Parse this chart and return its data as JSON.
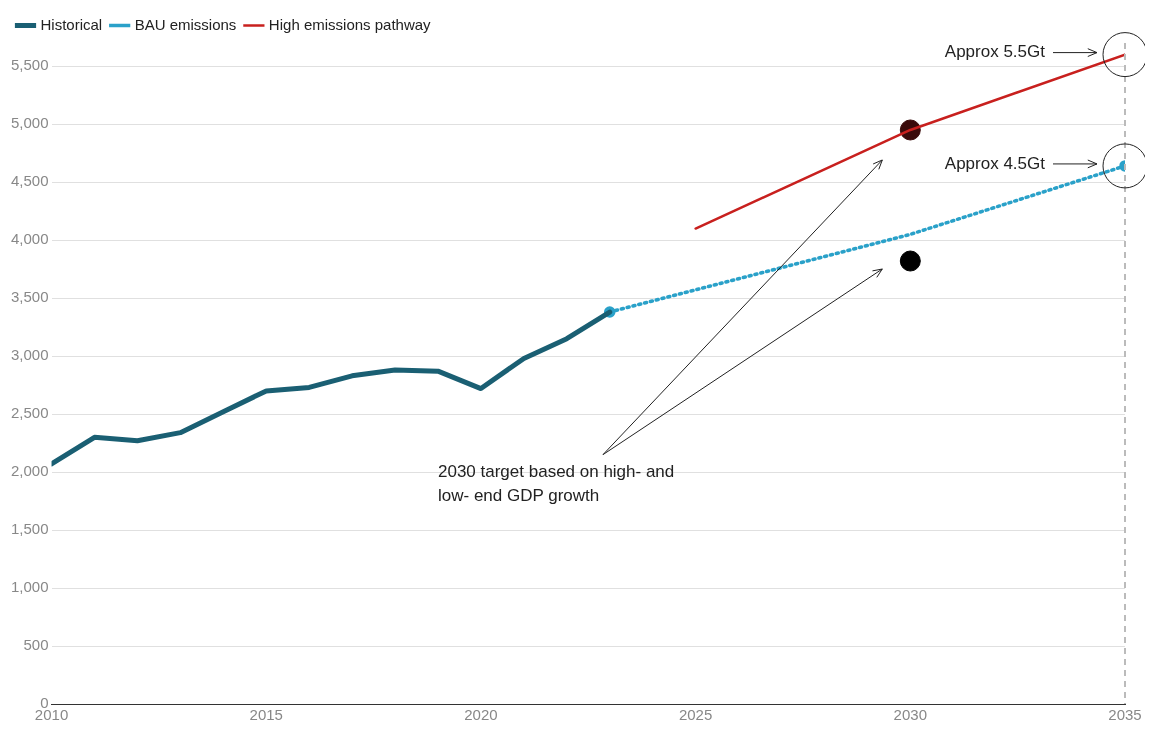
{
  "chart_data": {
    "type": "line",
    "x": [
      2010,
      2011,
      2012,
      2013,
      2014,
      2015,
      2016,
      2017,
      2018,
      2019,
      2020,
      2021,
      2022,
      2023
    ],
    "series": [
      {
        "name": "Historical",
        "color": "#1a5f73",
        "values": [
          2070,
          2300,
          2270,
          2340,
          2520,
          2700,
          2730,
          2830,
          2880,
          2870,
          2720,
          2980,
          3150,
          3380
        ]
      },
      {
        "name": "BAU emissions",
        "color": "#2aa1c9",
        "x": [
          2023,
          2030,
          2035
        ],
        "values": [
          3380,
          4050,
          4640
        ],
        "line_style": "dotted",
        "marker": "circle"
      },
      {
        "name": "High emissions pathway",
        "color": "#c8201e",
        "x": [
          2025,
          2030,
          2035
        ],
        "values": [
          4100,
          4950,
          5600
        ]
      },
      {
        "type": "scatter",
        "color": "#3a0a0a",
        "x": [
          2030
        ],
        "values": [
          4950
        ]
      },
      {
        "type": "scatter",
        "color": "#000000",
        "x": [
          2030
        ],
        "values": [
          3820
        ]
      }
    ],
    "xlim": [
      2010,
      2035
    ],
    "xticks": [
      2010,
      2015,
      2020,
      2025,
      2030,
      2035
    ],
    "ylim": [
      0,
      5700
    ],
    "yticks": [
      0,
      {
        "value": 500,
        "label": "500"
      },
      {
        "value": 1000,
        "label": "1,000"
      },
      {
        "value": 1500,
        "label": "1,500"
      },
      {
        "value": 2000,
        "label": "2,000"
      },
      {
        "value": 2500,
        "label": "2,500"
      },
      {
        "value": 3000,
        "label": "3,000"
      },
      {
        "value": 3500,
        "label": "3,500"
      },
      {
        "value": 4000,
        "label": "4,000"
      },
      {
        "value": 4500,
        "label": "4,500"
      },
      {
        "value": 5000,
        "label": "5,000"
      },
      {
        "value": 5500,
        "label": "5,500"
      }
    ],
    "grid": "y",
    "legend": "top left",
    "ref_lines": [
      {
        "axis": "x",
        "value": 2035,
        "color": "#bbbbbb",
        "line_style": "dashed"
      }
    ],
    "annotations": [
      "Approx 5.5Gt",
      "Approx 4.5Gt",
      "2030 target based on high- and low- end GDP growth"
    ]
  }
}
